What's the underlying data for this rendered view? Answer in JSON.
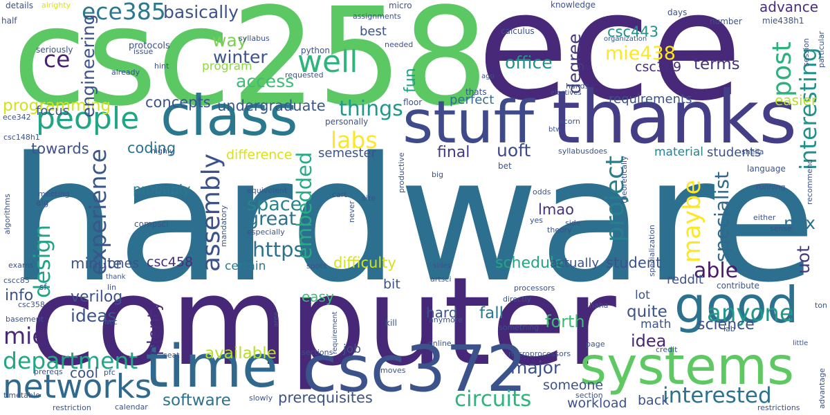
{
  "words": [
    {
      "text": "hardware",
      "color": "#2d6f8e",
      "vertical": false
    },
    {
      "text": "computer",
      "color": "#472777",
      "vertical": false
    },
    {
      "text": "csc258",
      "color": "#5cc863",
      "vertical": false
    },
    {
      "text": "ece",
      "color": "#482878",
      "vertical": false
    },
    {
      "text": "thanks",
      "color": "#433e85",
      "vertical": false
    },
    {
      "text": "stuff",
      "color": "#3e4a89",
      "vertical": false
    },
    {
      "text": "class",
      "color": "#2a788e",
      "vertical": false
    },
    {
      "text": "time",
      "color": "#31688e",
      "vertical": false
    },
    {
      "text": "csc372",
      "color": "#3b528b",
      "vertical": false
    },
    {
      "text": "good",
      "color": "#2c728e",
      "vertical": false
    },
    {
      "text": "systems",
      "color": "#5ec962",
      "vertical": false
    },
    {
      "text": "people",
      "color": "#21a685",
      "vertical": false
    },
    {
      "text": "networks",
      "color": "#30698e",
      "vertical": false
    },
    {
      "text": "ece385",
      "color": "#2a788e",
      "vertical": false
    },
    {
      "text": "well",
      "color": "#2fb47c",
      "vertical": false
    },
    {
      "text": "ce",
      "color": "#482173",
      "vertical": false
    },
    {
      "text": "basically",
      "color": "#3b528b",
      "vertical": false
    },
    {
      "text": "access",
      "color": "#3dbc74",
      "vertical": false
    },
    {
      "text": "way",
      "color": "#7ad151",
      "vertical": false
    },
    {
      "text": "winter",
      "color": "#3b528b",
      "vertical": false
    },
    {
      "text": "program",
      "color": "#8fd744",
      "vertical": false
    },
    {
      "text": "office",
      "color": "#21918c",
      "vertical": false
    },
    {
      "text": "degree",
      "color": "#443983",
      "vertical": true
    },
    {
      "text": "mie438",
      "color": "#fde725",
      "vertical": false
    },
    {
      "text": "csc443",
      "color": "#21918c",
      "vertical": false
    },
    {
      "text": "csc369",
      "color": "#472c7a",
      "vertical": false
    },
    {
      "text": "post",
      "color": "#2db27d",
      "vertical": true
    },
    {
      "text": "terms",
      "color": "#46327e",
      "vertical": false
    },
    {
      "text": "interesting",
      "color": "#21918c",
      "vertical": true
    },
    {
      "text": "advance",
      "color": "#472d7b",
      "vertical": false
    },
    {
      "text": "maybe",
      "color": "#fde725",
      "vertical": true
    },
    {
      "text": "project",
      "color": "#277f8e",
      "vertical": true
    },
    {
      "text": "assembly",
      "color": "#3b528b",
      "vertical": true
    },
    {
      "text": "specialist",
      "color": "#31688e",
      "vertical": true
    },
    {
      "text": "able",
      "color": "#481a6c",
      "vertical": false
    },
    {
      "text": "anyone",
      "color": "#1f9a8a",
      "vertical": false
    },
    {
      "text": "uot",
      "color": "#443983",
      "vertical": true
    },
    {
      "text": "labs",
      "color": "#fde725",
      "vertical": false
    },
    {
      "text": "things",
      "color": "#1f988b",
      "vertical": false
    },
    {
      "text": "fun",
      "color": "#1fa187",
      "vertical": true
    },
    {
      "text": "programming",
      "color": "#d2e21b",
      "vertical": false
    },
    {
      "text": "concepts",
      "color": "#3b528b",
      "vertical": false
    },
    {
      "text": "undergraduate",
      "color": "#38588c",
      "vertical": false
    },
    {
      "text": "requirements",
      "color": "#3b528b",
      "vertical": false
    },
    {
      "text": "perfect",
      "color": "#2e6e8e",
      "vertical": false
    },
    {
      "text": "easier",
      "color": "#b8de29",
      "vertical": false
    },
    {
      "text": "towards",
      "color": "#3b528b",
      "vertical": false
    },
    {
      "text": "coding",
      "color": "#2c718e",
      "vertical": false
    },
    {
      "text": "uoft",
      "color": "#3e4989",
      "vertical": false
    },
    {
      "text": "final",
      "color": "#453781",
      "vertical": false
    },
    {
      "text": "students",
      "color": "#3b528b",
      "vertical": false
    },
    {
      "text": "material",
      "color": "#26828e",
      "vertical": false
    },
    {
      "text": "experience",
      "color": "#39568c",
      "vertical": true
    },
    {
      "text": "design",
      "color": "#20a386",
      "vertical": true
    },
    {
      "text": "embedded",
      "color": "#25ac82",
      "vertical": true
    },
    {
      "text": "https",
      "color": "#2c728e",
      "vertical": false
    },
    {
      "text": "great",
      "color": "#2c728e",
      "vertical": false
    },
    {
      "text": "space",
      "color": "#25848e",
      "vertical": false
    },
    {
      "text": "mix",
      "color": "#2e6e8e",
      "vertical": false
    },
    {
      "text": "lmao",
      "color": "#46327e",
      "vertical": false
    },
    {
      "text": "probably",
      "color": "#2a788e",
      "vertical": false
    },
    {
      "text": "difference",
      "color": "#d8e219",
      "vertical": false
    },
    {
      "text": "semester",
      "color": "#3b528b",
      "vertical": false
    },
    {
      "text": "minute",
      "color": "#3b528b",
      "vertical": false
    },
    {
      "text": "ones",
      "color": "#3b528b",
      "vertical": false
    },
    {
      "text": "csc458",
      "color": "#472d7b",
      "vertical": false
    },
    {
      "text": "certain",
      "color": "#2a788e",
      "vertical": false
    },
    {
      "text": "difficulty",
      "color": "#d8e219",
      "vertical": false
    },
    {
      "text": "schedule",
      "color": "#22a785",
      "vertical": false
    },
    {
      "text": "actually",
      "color": "#3b528b",
      "vertical": false
    },
    {
      "text": "student",
      "color": "#3b528b",
      "vertical": false
    },
    {
      "text": "info",
      "color": "#3b528b",
      "vertical": false
    },
    {
      "text": "mie",
      "color": "#482979",
      "vertical": false
    },
    {
      "text": "verilog",
      "color": "#3b528b",
      "vertical": false
    },
    {
      "text": "ideas",
      "color": "#3b528b",
      "vertical": false
    },
    {
      "text": "plenty",
      "color": "#472d7b",
      "vertical": true
    },
    {
      "text": "easy",
      "color": "#3dbc74",
      "vertical": false
    },
    {
      "text": "bit",
      "color": "#3b528b",
      "vertical": false
    },
    {
      "text": "hard",
      "color": "#3b528b",
      "vertical": false
    },
    {
      "text": "fall",
      "color": "#2a788e",
      "vertical": false
    },
    {
      "text": "forth",
      "color": "#3dbc74",
      "vertical": false
    },
    {
      "text": "quite",
      "color": "#3b528b",
      "vertical": false
    },
    {
      "text": "lot",
      "color": "#3b528b",
      "vertical": false
    },
    {
      "text": "math",
      "color": "#3b528b",
      "vertical": false
    },
    {
      "text": "idea",
      "color": "#482475",
      "vertical": false
    },
    {
      "text": "science",
      "color": "#3b528b",
      "vertical": false
    },
    {
      "text": "department",
      "color": "#22a785",
      "vertical": false
    },
    {
      "text": "available",
      "color": "#b5de2b",
      "vertical": false
    },
    {
      "text": "major",
      "color": "#3b528b",
      "vertical": false
    },
    {
      "text": "circuits",
      "color": "#2fb47c",
      "vertical": false
    },
    {
      "text": "interested",
      "color": "#2c728e",
      "vertical": false
    },
    {
      "text": "cool",
      "color": "#3b528b",
      "vertical": false
    },
    {
      "text": "software",
      "color": "#2c728e",
      "vertical": false
    },
    {
      "text": "prerequisites",
      "color": "#3b528b",
      "vertical": false
    },
    {
      "text": "someone",
      "color": "#3b528b",
      "vertical": false
    },
    {
      "text": "workload",
      "color": "#3b528b",
      "vertical": false
    },
    {
      "text": "back",
      "color": "#3b528b",
      "vertical": false
    },
    {
      "text": "reddit",
      "color": "#3b528b",
      "vertical": false
    },
    {
      "text": "job",
      "color": "#3b528b",
      "vertical": false
    },
    {
      "text": "focus",
      "color": "#3b528b",
      "vertical": false
    },
    {
      "text": "best",
      "color": "#3b528b",
      "vertical": false
    },
    {
      "text": "engineering",
      "color": "#3b528b",
      "vertical": true
    },
    {
      "text": "details",
      "color": "#3b528b",
      "vertical": false
    },
    {
      "text": "alrighty",
      "color": "#d8e219",
      "vertical": false
    },
    {
      "text": "half",
      "color": "#3b528b",
      "vertical": false
    },
    {
      "text": "seriously",
      "color": "#3b528b",
      "vertical": false
    },
    {
      "text": "protocols",
      "color": "#3b528b",
      "vertical": false
    },
    {
      "text": "issue",
      "color": "#3b528b",
      "vertical": false
    },
    {
      "text": "hint",
      "color": "#3b528b",
      "vertical": false
    },
    {
      "text": "already",
      "color": "#3b528b",
      "vertical": false
    },
    {
      "text": "syllabus",
      "color": "#3b528b",
      "vertical": false
    },
    {
      "text": "python",
      "color": "#3b528b",
      "vertical": false
    },
    {
      "text": "requested",
      "color": "#3b528b",
      "vertical": false
    },
    {
      "text": "micro",
      "color": "#3b528b",
      "vertical": false
    },
    {
      "text": "assignments",
      "color": "#3b528b",
      "vertical": false
    },
    {
      "text": "needed",
      "color": "#3b528b",
      "vertical": false
    },
    {
      "text": "calculus",
      "color": "#3b528b",
      "vertical": false
    },
    {
      "text": "knowledge",
      "color": "#3b528b",
      "vertical": false
    },
    {
      "text": "organization",
      "color": "#3b528b",
      "vertical": false
    },
    {
      "text": "days",
      "color": "#3b528b",
      "vertical": false
    },
    {
      "text": "number",
      "color": "#3b528b",
      "vertical": false
    },
    {
      "text": "mie438h1",
      "color": "#3b528b",
      "vertical": false
    },
    {
      "text": "session",
      "color": "#3b528b",
      "vertical": true
    },
    {
      "text": "particular",
      "color": "#3b528b",
      "vertical": true
    },
    {
      "text": "ago",
      "color": "#3b528b",
      "vertical": false
    },
    {
      "text": "hands",
      "color": "#3b528b",
      "vertical": false
    },
    {
      "text": "thats",
      "color": "#3b528b",
      "vertical": false
    },
    {
      "text": "electives",
      "color": "#3b528b",
      "vertical": false
    },
    {
      "text": "floor",
      "color": "#3b528b",
      "vertical": false
    },
    {
      "text": "personally",
      "color": "#3b528b",
      "vertical": false
    },
    {
      "text": "acorn",
      "color": "#3b528b",
      "vertical": false
    },
    {
      "text": "btw",
      "color": "#3b528b",
      "vertical": false
    },
    {
      "text": "ece342",
      "color": "#3b528b",
      "vertical": false
    },
    {
      "text": "csc148h1",
      "color": "#3b528b",
      "vertical": false
    },
    {
      "text": "highly",
      "color": "#3b528b",
      "vertical": false
    },
    {
      "text": "bet",
      "color": "#3b528b",
      "vertical": false
    },
    {
      "text": "syllabusdoes",
      "color": "#3b528b",
      "vertical": false
    },
    {
      "text": "sheila",
      "color": "#3b528b",
      "vertical": false
    },
    {
      "text": "language",
      "color": "#3b528b",
      "vertical": false
    },
    {
      "text": "productive",
      "color": "#3b528b",
      "vertical": true
    },
    {
      "text": "big",
      "color": "#3b528b",
      "vertical": false
    },
    {
      "text": "theoretically",
      "color": "#3b528b",
      "vertical": true
    },
    {
      "text": "running",
      "color": "#3b528b",
      "vertical": false
    },
    {
      "text": "recommend",
      "color": "#3b528b",
      "vertical": true
    },
    {
      "text": "meeting",
      "color": "#3b528b",
      "vertical": false
    },
    {
      "text": "alg",
      "color": "#3b528b",
      "vertical": false
    },
    {
      "text": "algorithms",
      "color": "#3b528b",
      "vertical": true
    },
    {
      "text": "equivelent",
      "color": "#3b528b",
      "vertical": false
    },
    {
      "text": "cart",
      "color": "#3b528b",
      "vertical": false
    },
    {
      "text": "odds",
      "color": "#3b528b",
      "vertical": false
    },
    {
      "text": "yes",
      "color": "#3b528b",
      "vertical": false
    },
    {
      "text": "site",
      "color": "#3b528b",
      "vertical": false
    },
    {
      "text": "never",
      "color": "#3b528b",
      "vertical": true
    },
    {
      "text": "compsci",
      "color": "#3b528b",
      "vertical": false
    },
    {
      "text": "mandatory",
      "color": "#3b528b",
      "vertical": true
    },
    {
      "text": "especially",
      "color": "#3b528b",
      "vertical": false
    },
    {
      "text": "side",
      "color": "#3b528b",
      "vertical": false
    },
    {
      "text": "theory",
      "color": "#3b528b",
      "vertical": false
    },
    {
      "text": "either",
      "color": "#3b528b",
      "vertical": false
    },
    {
      "text": "sense",
      "color": "#3b528b",
      "vertical": false
    },
    {
      "text": "specialization",
      "color": "#3b528b",
      "vertical": true
    },
    {
      "text": "exams",
      "color": "#3b528b",
      "vertical": false
    },
    {
      "text": "thank",
      "color": "#3b528b",
      "vertical": false
    },
    {
      "text": "spots",
      "color": "#3b528b",
      "vertical": false
    },
    {
      "text": "sides",
      "color": "#3b528b",
      "vertical": false
    },
    {
      "text": "cscc85",
      "color": "#3b528b",
      "vertical": false
    },
    {
      "text": "sf",
      "color": "#3b528b",
      "vertical": false
    },
    {
      "text": "lin",
      "color": "#3b528b",
      "vertical": false
    },
    {
      "text": "csc358",
      "color": "#3b528b",
      "vertical": false
    },
    {
      "text": "artsci",
      "color": "#3b528b",
      "vertical": false
    },
    {
      "text": "processors",
      "color": "#3b528b",
      "vertical": false
    },
    {
      "text": "directly",
      "color": "#3b528b",
      "vertical": false
    },
    {
      "text": "contribute",
      "color": "#3b528b",
      "vertical": false
    },
    {
      "text": "ton",
      "color": "#3b528b",
      "vertical": false
    },
    {
      "text": "basement",
      "color": "#3b528b",
      "vertical": false
    },
    {
      "text": "acc",
      "color": "#3b528b",
      "vertical": false
    },
    {
      "text": "area",
      "color": "#3b528b",
      "vertical": true
    },
    {
      "text": "requirement",
      "color": "#3b528b",
      "vertical": true
    },
    {
      "text": "kill",
      "color": "#3b528b",
      "vertical": false
    },
    {
      "text": "anymore",
      "color": "#3b528b",
      "vertical": false
    },
    {
      "text": "haha",
      "color": "#3b528b",
      "vertical": false
    },
    {
      "text": "something",
      "color": "#3b528b",
      "vertical": false
    },
    {
      "text": "lab",
      "color": "#3b528b",
      "vertical": false
    },
    {
      "text": "little",
      "color": "#3b528b",
      "vertical": false
    },
    {
      "text": "online",
      "color": "#3b528b",
      "vertical": false
    },
    {
      "text": "microprocessors",
      "color": "#3b528b",
      "vertical": false
    },
    {
      "text": "page",
      "color": "#3b528b",
      "vertical": false
    },
    {
      "text": "credit",
      "color": "#3b528b",
      "vertical": false
    },
    {
      "text": "advantage",
      "color": "#3b528b",
      "vertical": true
    },
    {
      "text": "seat",
      "color": "#3b528b",
      "vertical": false
    },
    {
      "text": "sections",
      "color": "#3b528b",
      "vertical": false
    },
    {
      "text": "prereqs",
      "color": "#3b528b",
      "vertical": false
    },
    {
      "text": "pfc",
      "color": "#3b528b",
      "vertical": false
    },
    {
      "text": "moves",
      "color": "#3b528b",
      "vertical": false
    },
    {
      "text": "timetable",
      "color": "#3b528b",
      "vertical": false
    },
    {
      "text": "restriction",
      "color": "#3b528b",
      "vertical": false
    },
    {
      "text": "calendar",
      "color": "#3b528b",
      "vertical": false
    },
    {
      "text": "slowly",
      "color": "#3b528b",
      "vertical": false
    },
    {
      "text": "section",
      "color": "#3b528b",
      "vertical": false
    },
    {
      "text": "restrictions",
      "color": "#3b528b",
      "vertical": false
    }
  ]
}
